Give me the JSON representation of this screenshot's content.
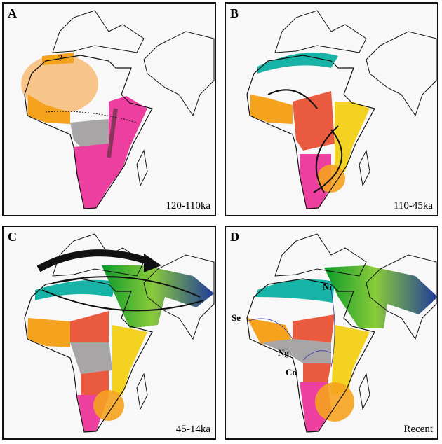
{
  "panels": [
    {
      "letter": "A",
      "age": "120-110ka",
      "question": "?"
    },
    {
      "letter": "B",
      "age": "110-45ka"
    },
    {
      "letter": "C",
      "age": "45-14ka"
    },
    {
      "letter": "D",
      "age": "Recent",
      "labels": {
        "se": "Se",
        "ni": "Ni",
        "ng": "Ng",
        "co": "Co"
      }
    }
  ],
  "colors": {
    "orange": "#f5a21e",
    "pale_orange": "#f7c48a",
    "magenta": "#ec3fa0",
    "gray": "#a7a5a5",
    "red": "#ea5a3e",
    "yellow": "#f4d222",
    "teal": "#17b3a6",
    "green": "#7cc63a",
    "blue": "#1f3a9c"
  }
}
